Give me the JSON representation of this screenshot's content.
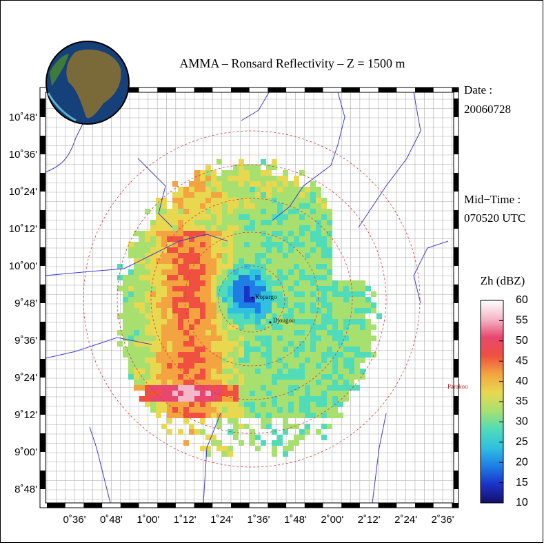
{
  "title": "AMMA  –  Ronsard Reflectivity  –  Z = 1500 m",
  "date_label": "Date :",
  "date": "20060728",
  "midtime_label": "Mid−Time :",
  "midtime": "070520 UTC",
  "lon_labels": [
    "0˚36'",
    "0˚48'",
    "1˚00'",
    "1˚12'",
    "1˚24'",
    "1˚36'",
    "1˚48'",
    "2˚00'",
    "2˚12'",
    "2˚24'",
    "2˚36'"
  ],
  "lat_labels": [
    "10˚48'",
    "10˚36'",
    "10˚24'",
    "10˚12'",
    "10˚00'",
    "9˚48'",
    "9˚36'",
    "9˚24'",
    "9˚12'",
    "9˚00'",
    "8˚48'"
  ],
  "places": [
    "Kopargo",
    "Djougou",
    "Parakou"
  ],
  "colorbar": {
    "label": "Zh (dBZ)",
    "lim": [
      10,
      60
    ],
    "ticks": [
      10,
      15,
      20,
      25,
      30,
      35,
      40,
      45,
      50,
      55,
      60
    ],
    "colors": [
      "#14106a",
      "#1b32c8",
      "#1e7ee6",
      "#30c0e0",
      "#50dcb8",
      "#a8e070",
      "#e8d850",
      "#f3a440",
      "#ef5040",
      "#e84870",
      "#f4b8c8",
      "#ffffff"
    ]
  }
}
